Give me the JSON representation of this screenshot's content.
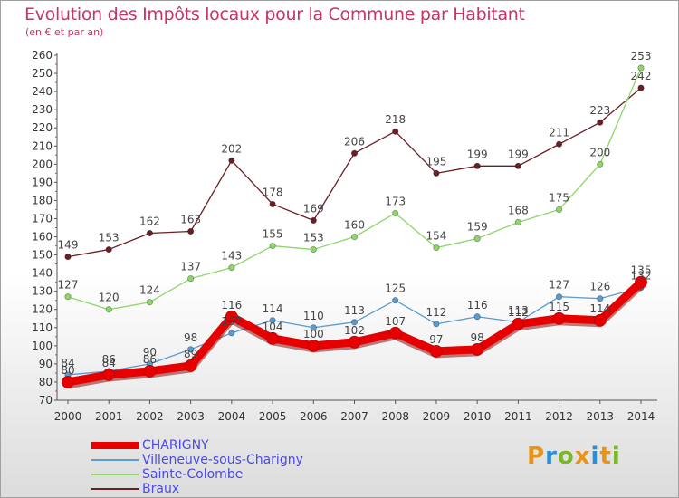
{
  "header": {
    "title": "Evolution des Impôts locaux pour la Commune par Habitant",
    "subtitle": "(en € et par an)"
  },
  "logo": {
    "text": "Proxiti",
    "colors": [
      "#e8941a",
      "#2a8fd8",
      "#7ab828",
      "#e8941a",
      "#2a8fd8",
      "#e8941a",
      "#7ab828"
    ]
  },
  "chart_data": {
    "type": "line",
    "x": [
      2000,
      2001,
      2002,
      2003,
      2004,
      2005,
      2006,
      2007,
      2008,
      2009,
      2010,
      2011,
      2012,
      2013,
      2014
    ],
    "ylim": [
      70,
      260
    ],
    "yticks": [
      70,
      80,
      90,
      100,
      110,
      120,
      130,
      140,
      150,
      160,
      170,
      180,
      190,
      200,
      210,
      220,
      230,
      240,
      250,
      260
    ],
    "grid": false,
    "legend_position": "bottom-left",
    "series": [
      {
        "name": "CHARIGNY",
        "color": "#e60000",
        "values": [
          80,
          84,
          86,
          89,
          116,
          104,
          100,
          102,
          107,
          97,
          98,
          112,
          115,
          114,
          135
        ],
        "labels": [
          "80",
          "84",
          "86",
          "89",
          "116",
          "104",
          "100",
          "102",
          "107",
          "97",
          "98",
          "112",
          "115",
          "114",
          "135"
        ]
      },
      {
        "name": "Villeneuve-sous-Charigny",
        "color": "#5a9bd0",
        "values": [
          84,
          86,
          90,
          98,
          107,
          114,
          110,
          113,
          125,
          112,
          116,
          113,
          127,
          126,
          132
        ],
        "labels": [
          "84",
          "86",
          "90",
          "98",
          "107",
          "114",
          "110",
          "113",
          "125",
          "112",
          "116",
          "113",
          "127",
          "126",
          "132"
        ]
      },
      {
        "name": "Sainte-Colombe",
        "color": "#8fd66a",
        "values": [
          127,
          120,
          124,
          137,
          143,
          155,
          153,
          160,
          173,
          154,
          159,
          168,
          175,
          200,
          253
        ],
        "labels": [
          "127",
          "120",
          "124",
          "137",
          "143",
          "155",
          "153",
          "160",
          "173",
          "154",
          "159",
          "168",
          "175",
          "200",
          "253"
        ]
      },
      {
        "name": "Braux",
        "color": "#6b1f24",
        "values": [
          149,
          153,
          162,
          163,
          202,
          178,
          169,
          206,
          218,
          195,
          199,
          199,
          211,
          223,
          242
        ],
        "labels": [
          "149",
          "153",
          "162",
          "163",
          "202",
          "178",
          "169",
          "206",
          "218",
          "195",
          "199",
          "199",
          "211",
          "223",
          "242"
        ]
      }
    ]
  }
}
